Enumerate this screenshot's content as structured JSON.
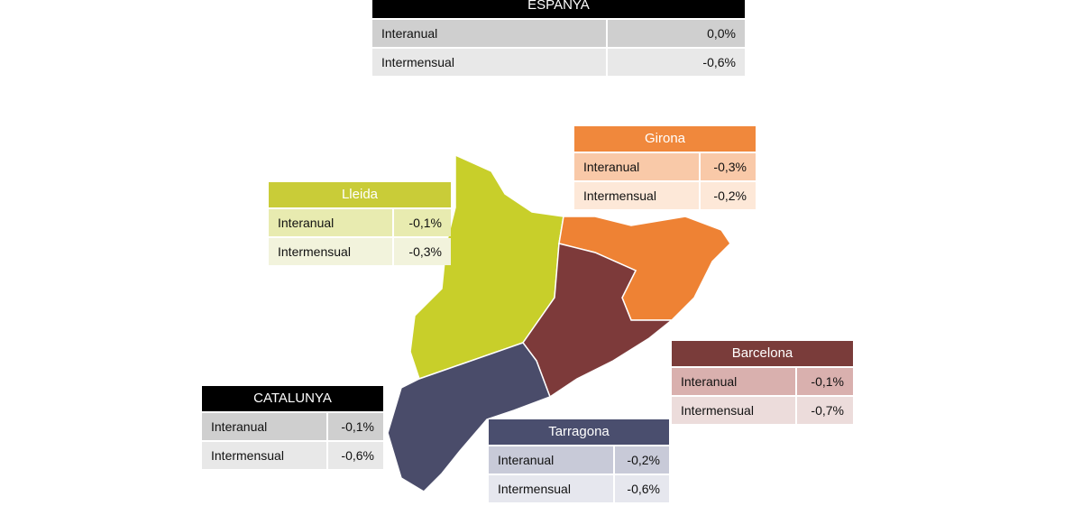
{
  "panels": [
    {
      "title": "ESPANYA",
      "rows": [
        [
          "Interanual",
          "0,0%"
        ],
        [
          "Intermensual",
          "-0,6%"
        ]
      ]
    },
    {
      "title": "Girona",
      "rows": [
        [
          "Interanual",
          "-0,3%"
        ],
        [
          "Intermensual",
          "-0,2%"
        ]
      ]
    },
    {
      "title": "Lleida",
      "rows": [
        [
          "Interanual",
          "-0,1%"
        ],
        [
          "Intermensual",
          "-0,3%"
        ]
      ]
    },
    {
      "title": "Barcelona",
      "rows": [
        [
          "Interanual",
          "-0,1%"
        ],
        [
          "Intermensual",
          "-0,7%"
        ]
      ]
    },
    {
      "title": "CATALUNYA",
      "rows": [
        [
          "Interanual",
          "-0,1%"
        ],
        [
          "Intermensual",
          "-0,6%"
        ]
      ]
    },
    {
      "title": "Tarragona",
      "rows": [
        [
          "Interanual",
          "-0,2%"
        ],
        [
          "Intermensual",
          "-0,6%"
        ]
      ]
    }
  ]
}
